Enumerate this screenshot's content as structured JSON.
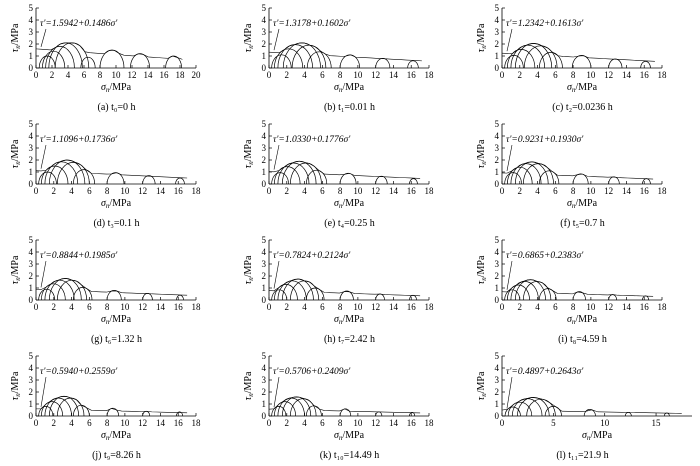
{
  "common": {
    "x_label": "σ_n/MPa",
    "y_label": "τ_n/MPa",
    "y_ticks": [
      0,
      1,
      2,
      3,
      4,
      5
    ],
    "ylim": [
      0,
      5
    ]
  },
  "chart_data": [
    {
      "type": "line",
      "caption": "(a) t₀=0 h",
      "equation": "τ'=1.5942+0.1486σ'",
      "intercept": 1.5942,
      "slope": 0.1486,
      "xlim": [
        0,
        20
      ],
      "x_ticks": [
        0,
        2,
        4,
        6,
        8,
        10,
        12,
        14,
        16,
        18,
        20
      ],
      "envelope_range": [
        0,
        18.3
      ],
      "circles": [
        [
          0.4,
          2.4
        ],
        [
          0.8,
          3.6
        ],
        [
          1.2,
          4.8
        ],
        [
          1.6,
          5.8
        ],
        [
          2.4,
          6.6
        ],
        [
          5.6,
          7.4
        ],
        [
          8.0,
          11.0
        ],
        [
          11.8,
          14.2
        ],
        [
          16.2,
          18.2
        ]
      ]
    },
    {
      "type": "line",
      "caption": "(b) t₁=0.01 h",
      "equation": "τ'=1.3178+0.1602σ'",
      "intercept": 1.3178,
      "slope": 0.1602,
      "xlim": [
        0,
        18
      ],
      "x_ticks": [
        0,
        2,
        4,
        6,
        8,
        10,
        12,
        14,
        16,
        18
      ],
      "envelope_range": [
        0,
        17.2
      ],
      "circles": [
        [
          0.3,
          2.5
        ],
        [
          0.6,
          3.8
        ],
        [
          1.0,
          4.9
        ],
        [
          1.6,
          5.8
        ],
        [
          2.6,
          6.4
        ],
        [
          4.3,
          7.0
        ],
        [
          8.0,
          10.2
        ],
        [
          12.0,
          13.6
        ],
        [
          15.6,
          16.8
        ]
      ]
    },
    {
      "type": "line",
      "caption": "(c) t₂=0.0236 h",
      "equation": "τ'=1.2342+0.1613σ'",
      "intercept": 1.2342,
      "slope": 0.1613,
      "xlim": [
        0,
        18
      ],
      "x_ticks": [
        0,
        2,
        4,
        6,
        8,
        10,
        12,
        14,
        16,
        18
      ],
      "envelope_range": [
        0,
        17.2
      ],
      "circles": [
        [
          0.3,
          2.4
        ],
        [
          0.6,
          3.7
        ],
        [
          1.0,
          4.8
        ],
        [
          1.5,
          5.6
        ],
        [
          2.5,
          6.2
        ],
        [
          4.2,
          6.8
        ],
        [
          7.9,
          10.0
        ],
        [
          12.0,
          13.5
        ],
        [
          15.6,
          16.7
        ]
      ]
    },
    {
      "type": "line",
      "caption": "(d) t₃=0.1 h",
      "equation": "τ'=1.1096+0.1736σ'",
      "intercept": 1.1096,
      "slope": 0.1736,
      "xlim": [
        0,
        18
      ],
      "x_ticks": [
        0,
        2,
        4,
        6,
        8,
        10,
        12,
        14,
        16,
        18
      ],
      "envelope_range": [
        0,
        17.0
      ],
      "circles": [
        [
          0.3,
          2.3
        ],
        [
          0.6,
          3.6
        ],
        [
          1.0,
          4.7
        ],
        [
          1.5,
          5.5
        ],
        [
          2.4,
          6.0
        ],
        [
          4.2,
          6.6
        ],
        [
          8.0,
          9.9
        ],
        [
          12.0,
          13.4
        ],
        [
          15.7,
          16.7
        ]
      ]
    },
    {
      "type": "line",
      "caption": "(e) t₄=0.25 h",
      "equation": "τ'=1.0330+0.1776σ'",
      "intercept": 1.033,
      "slope": 0.1776,
      "xlim": [
        0,
        18
      ],
      "x_ticks": [
        0,
        2,
        4,
        6,
        8,
        10,
        12,
        14,
        16,
        18
      ],
      "envelope_range": [
        0,
        17.0
      ],
      "circles": [
        [
          0.3,
          2.2
        ],
        [
          0.6,
          3.5
        ],
        [
          1.0,
          4.5
        ],
        [
          1.5,
          5.3
        ],
        [
          2.4,
          5.9
        ],
        [
          4.2,
          6.5
        ],
        [
          8.0,
          9.8
        ],
        [
          12.0,
          13.3
        ],
        [
          15.8,
          16.7
        ]
      ]
    },
    {
      "type": "line",
      "caption": "(f) t₅=0.7 h",
      "equation": "τ'=0.9231+0.1930σ'",
      "intercept": 0.9231,
      "slope": 0.193,
      "xlim": [
        0,
        18
      ],
      "x_ticks": [
        0,
        2,
        4,
        6,
        8,
        10,
        12,
        14,
        16,
        18
      ],
      "envelope_range": [
        0,
        17.0
      ],
      "circles": [
        [
          0.3,
          2.2
        ],
        [
          0.6,
          3.4
        ],
        [
          1.0,
          4.4
        ],
        [
          1.5,
          5.2
        ],
        [
          2.4,
          5.8
        ],
        [
          4.2,
          6.4
        ],
        [
          8.0,
          9.7
        ],
        [
          12.0,
          13.2
        ],
        [
          15.8,
          16.7
        ]
      ]
    },
    {
      "type": "line",
      "caption": "(g) t₆=1.32 h",
      "equation": "τ'=0.8844+0.1985σ'",
      "intercept": 0.8844,
      "slope": 0.1985,
      "xlim": [
        0,
        18
      ],
      "x_ticks": [
        0,
        2,
        4,
        6,
        8,
        10,
        12,
        14,
        16,
        18
      ],
      "envelope_range": [
        0,
        17.0
      ],
      "circles": [
        [
          0.3,
          2.1
        ],
        [
          0.6,
          3.3
        ],
        [
          1.0,
          4.3
        ],
        [
          1.5,
          5.1
        ],
        [
          2.4,
          5.7
        ],
        [
          4.2,
          6.3
        ],
        [
          8.0,
          9.6
        ],
        [
          12.0,
          13.1
        ],
        [
          15.8,
          16.6
        ]
      ]
    },
    {
      "type": "line",
      "caption": "(h) t₇=2.42 h",
      "equation": "τ'=0.7824+0.2124σ'",
      "intercept": 0.7824,
      "slope": 0.2124,
      "xlim": [
        0,
        18
      ],
      "x_ticks": [
        0,
        2,
        4,
        6,
        8,
        10,
        12,
        14,
        16,
        18
      ],
      "envelope_range": [
        0,
        17.0
      ],
      "circles": [
        [
          0.3,
          2.0
        ],
        [
          0.6,
          3.2
        ],
        [
          1.0,
          4.2
        ],
        [
          1.5,
          5.0
        ],
        [
          2.4,
          5.6
        ],
        [
          4.2,
          6.2
        ],
        [
          8.0,
          9.5
        ],
        [
          12.0,
          13.0
        ],
        [
          15.8,
          16.6
        ]
      ]
    },
    {
      "type": "line",
      "caption": "(i) t₈=4.59 h",
      "equation": "τ'=0.6865+0.2383σ'",
      "intercept": 0.6865,
      "slope": 0.2383,
      "xlim": [
        0,
        18
      ],
      "x_ticks": [
        0,
        2,
        4,
        6,
        8,
        10,
        12,
        14,
        16,
        18
      ],
      "envelope_range": [
        0,
        17.0
      ],
      "circles": [
        [
          0.3,
          2.0
        ],
        [
          0.6,
          3.1
        ],
        [
          1.0,
          4.1
        ],
        [
          1.5,
          4.9
        ],
        [
          2.4,
          5.5
        ],
        [
          4.2,
          6.1
        ],
        [
          8.0,
          9.4
        ],
        [
          12.0,
          12.9
        ],
        [
          15.8,
          16.5
        ]
      ]
    },
    {
      "type": "line",
      "caption": "(j) t₉=8.26 h",
      "equation": "τ'=0.5940+0.2559σ'",
      "intercept": 0.594,
      "slope": 0.2559,
      "xlim": [
        0,
        18
      ],
      "x_ticks": [
        0,
        2,
        4,
        6,
        8,
        10,
        12,
        14,
        16,
        18
      ],
      "envelope_range": [
        0,
        17.0
      ],
      "circles": [
        [
          0.3,
          1.9
        ],
        [
          0.6,
          3.0
        ],
        [
          1.0,
          4.0
        ],
        [
          1.5,
          4.8
        ],
        [
          2.4,
          5.4
        ],
        [
          4.2,
          6.0
        ],
        [
          8.0,
          9.3
        ],
        [
          12.0,
          12.8
        ],
        [
          15.8,
          16.5
        ]
      ]
    },
    {
      "type": "line",
      "caption": "(k) t₁₀=14.49 h",
      "equation": "τ'=0.5706+0.2409σ'",
      "intercept": 0.5706,
      "slope": 0.2409,
      "xlim": [
        0,
        18
      ],
      "x_ticks": [
        0,
        2,
        4,
        6,
        8,
        10,
        12,
        14,
        16,
        18
      ],
      "envelope_range": [
        0,
        17.0
      ],
      "circles": [
        [
          0.3,
          1.9
        ],
        [
          0.6,
          3.0
        ],
        [
          1.0,
          4.0
        ],
        [
          1.5,
          4.7
        ],
        [
          2.4,
          5.3
        ],
        [
          4.2,
          5.9
        ],
        [
          8.0,
          9.2
        ],
        [
          12.0,
          12.7
        ],
        [
          15.8,
          16.4
        ]
      ]
    },
    {
      "type": "line",
      "caption": "(l) t₁₁=21.9 h",
      "equation": "τ'=0.4897+0.2643σ'",
      "intercept": 0.4897,
      "slope": 0.2643,
      "xlim": [
        0,
        18.5
      ],
      "x_ticks": [
        0,
        5,
        10,
        15
      ],
      "envelope_range": [
        0,
        17.5
      ],
      "circles": [
        [
          0.3,
          1.8
        ],
        [
          0.6,
          2.9
        ],
        [
          1.0,
          3.9
        ],
        [
          1.5,
          4.6
        ],
        [
          2.4,
          5.2
        ],
        [
          4.2,
          5.8
        ],
        [
          8.0,
          9.1
        ],
        [
          12.0,
          12.6
        ],
        [
          15.8,
          16.3
        ]
      ]
    }
  ]
}
